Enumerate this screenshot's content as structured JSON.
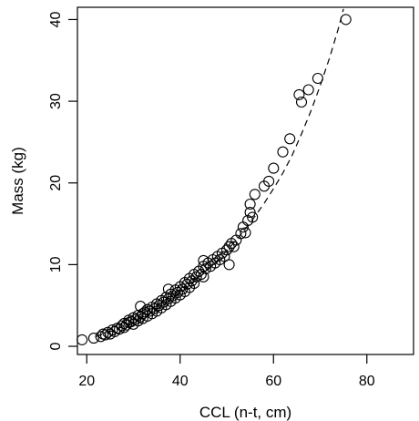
{
  "chart_data": {
    "type": "scatter",
    "title": "",
    "xlabel": "CCL (n-t, cm)",
    "ylabel": "Mass (kg)",
    "xlim": [
      18,
      90
    ],
    "ylim": [
      -1,
      41.5
    ],
    "xticks": [
      20,
      40,
      60,
      80
    ],
    "yticks": [
      0,
      10,
      20,
      30,
      40
    ],
    "grid": false,
    "legend": "none",
    "marker": "open-circle",
    "series": [
      {
        "x": [
          19.0,
          21.5,
          23.0,
          23.5,
          24.0,
          24.5,
          25.0,
          25.5,
          26.0,
          26.5,
          27.0,
          27.5,
          28.0,
          28.0,
          28.5,
          29.0,
          29.0,
          29.5,
          30.0,
          30.0,
          30.5,
          31.0,
          31.0,
          31.5,
          32.0,
          32.0,
          32.5,
          33.0,
          33.0,
          33.5,
          34.0,
          34.0,
          34.5,
          35.0,
          35.0,
          35.5,
          36.0,
          36.0,
          36.5,
          37.0,
          37.0,
          37.5,
          38.0,
          38.0,
          38.5,
          39.0,
          39.0,
          39.5,
          40.0,
          40.0,
          40.5,
          41.0,
          41.0,
          41.5,
          42.0,
          42.0,
          42.5,
          43.0,
          43.0,
          43.5,
          44.0,
          44.5,
          45.0,
          45.0,
          45.5,
          46.0,
          46.5,
          47.0,
          47.5,
          48.0,
          48.5,
          49.0,
          49.5,
          50.0,
          50.5,
          51.0,
          51.5,
          52.0,
          53.0,
          53.5,
          54.0,
          54.5,
          55.0,
          55.0,
          55.5,
          56.0,
          58.0,
          59.0,
          60.0,
          62.0,
          63.5,
          65.5,
          66.0,
          67.5,
          69.5,
          75.5,
          31.5,
          37.5,
          45.0,
          50.5
        ],
        "y": [
          0.8,
          1.0,
          1.2,
          1.5,
          1.4,
          1.7,
          1.5,
          2.0,
          1.8,
          2.2,
          2.1,
          2.5,
          2.3,
          2.8,
          2.6,
          2.9,
          3.2,
          3.0,
          2.7,
          3.5,
          3.3,
          3.1,
          3.8,
          3.6,
          3.4,
          4.0,
          4.2,
          3.7,
          4.5,
          4.3,
          4.0,
          4.8,
          4.6,
          4.3,
          5.2,
          5.0,
          4.7,
          5.6,
          5.4,
          5.1,
          6.0,
          5.8,
          5.5,
          6.4,
          6.2,
          5.9,
          6.9,
          6.6,
          6.3,
          7.3,
          7.0,
          6.7,
          7.8,
          7.6,
          7.2,
          8.3,
          8.0,
          7.7,
          8.8,
          8.5,
          9.2,
          8.8,
          8.5,
          9.8,
          9.5,
          10.2,
          9.8,
          10.6,
          10.2,
          11.0,
          10.6,
          11.4,
          11.0,
          11.8,
          12.2,
          12.6,
          12.2,
          13.0,
          13.8,
          14.6,
          13.9,
          15.4,
          16.4,
          17.4,
          15.8,
          18.6,
          19.6,
          20.2,
          21.8,
          23.8,
          25.4,
          30.8,
          29.9,
          31.4,
          32.8,
          40.0,
          4.9,
          7.0,
          10.5,
          10.0
        ]
      }
    ],
    "fit_line": {
      "style": "dashed",
      "x": [
        22,
        24,
        26,
        28,
        30,
        32,
        34,
        36,
        38,
        40,
        42,
        44,
        46,
        48,
        50,
        52,
        54,
        56,
        58,
        60,
        62,
        64,
        66,
        68,
        70,
        72,
        74,
        75
      ],
      "y": [
        1.2,
        1.6,
        2.0,
        2.5,
        3.0,
        3.6,
        4.2,
        4.9,
        5.7,
        6.5,
        7.4,
        8.4,
        9.4,
        10.5,
        11.7,
        13.0,
        14.4,
        15.9,
        17.5,
        19.3,
        21.2,
        23.4,
        26.0,
        28.8,
        31.9,
        35.3,
        39.1,
        41.3
      ]
    }
  }
}
